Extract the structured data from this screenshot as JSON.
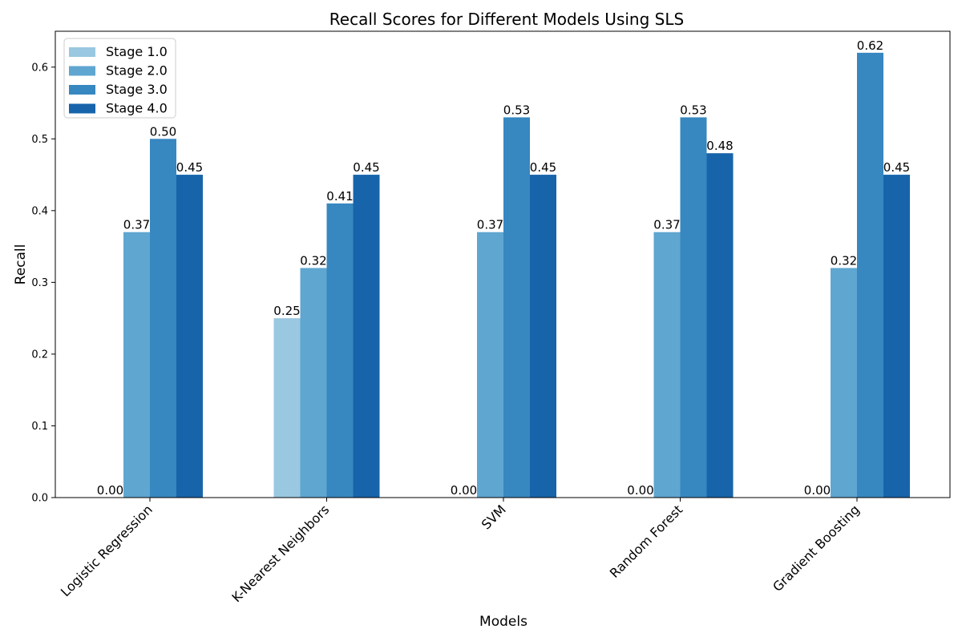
{
  "chart_data": {
    "type": "bar",
    "title": "Recall Scores for Different Models Using SLS",
    "xlabel": "Models",
    "ylabel": "Recall",
    "categories": [
      "Logistic Regression",
      "K-Nearest Neighbors",
      "SVM",
      "Random Forest",
      "Gradient Boosting"
    ],
    "series": [
      {
        "name": "Stage 1.0",
        "color": "#9ac8e0",
        "values": [
          0.0,
          0.25,
          0.0,
          0.0,
          0.0
        ]
      },
      {
        "name": "Stage 2.0",
        "color": "#5fa6d1",
        "values": [
          0.37,
          0.32,
          0.37,
          0.37,
          0.32
        ]
      },
      {
        "name": "Stage 3.0",
        "color": "#3787c0",
        "values": [
          0.5,
          0.41,
          0.53,
          0.53,
          0.62
        ]
      },
      {
        "name": "Stage 4.0",
        "color": "#1764ab",
        "values": [
          0.45,
          0.45,
          0.45,
          0.48,
          0.45
        ]
      }
    ],
    "ylim": [
      0,
      0.65
    ],
    "yticks": [
      "0.0",
      "0.1",
      "0.2",
      "0.3",
      "0.4",
      "0.5",
      "0.6"
    ],
    "grid": false,
    "legend_position": "top-left"
  }
}
